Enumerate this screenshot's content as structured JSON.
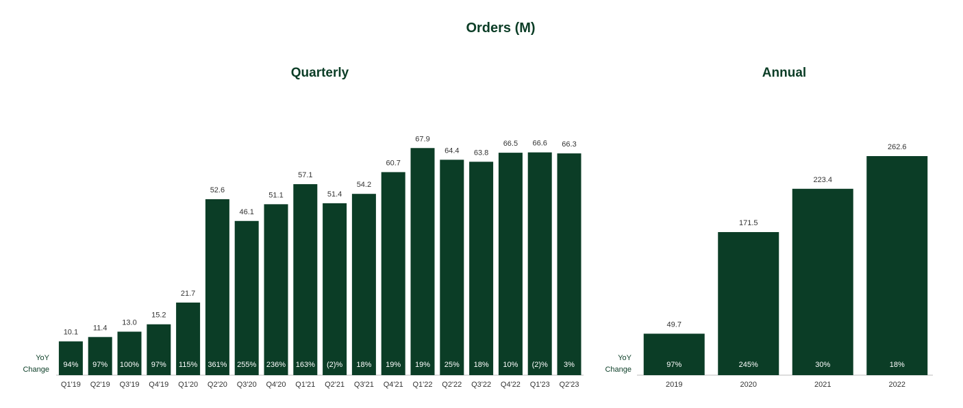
{
  "title": "Orders (M)",
  "side_label_line1": "YoY",
  "side_label_line2": "Change",
  "bar_color": "#0b3d26",
  "chart_data": [
    {
      "type": "bar",
      "title": "Quarterly",
      "categories": [
        "Q1'19",
        "Q2'19",
        "Q3'19",
        "Q4'19",
        "Q1'20",
        "Q2'20",
        "Q3'20",
        "Q4'20",
        "Q1'21",
        "Q2'21",
        "Q3'21",
        "Q4'21",
        "Q1'22",
        "Q2'22",
        "Q3'22",
        "Q4'22",
        "Q1'23",
        "Q2'23"
      ],
      "values": [
        10.1,
        11.4,
        13.0,
        15.2,
        21.7,
        52.6,
        46.1,
        51.1,
        57.1,
        51.4,
        54.2,
        60.7,
        67.9,
        64.4,
        63.8,
        66.5,
        66.6,
        66.3
      ],
      "value_labels": [
        "10.1",
        "11.4",
        "13.0",
        "15.2",
        "21.7",
        "52.6",
        "46.1",
        "51.1",
        "57.1",
        "51.4",
        "54.2",
        "60.7",
        "67.9",
        "64.4",
        "63.8",
        "66.5",
        "66.6",
        "66.3"
      ],
      "yoy_change": [
        "94%",
        "97%",
        "100%",
        "97%",
        "115%",
        "361%",
        "255%",
        "236%",
        "163%",
        "(2)%",
        "18%",
        "19%",
        "19%",
        "25%",
        "18%",
        "10%",
        "(2)%",
        "3%"
      ],
      "ylim": [
        0,
        70
      ],
      "grid": false,
      "legend": "none"
    },
    {
      "type": "bar",
      "title": "Annual",
      "categories": [
        "2019",
        "2020",
        "2021",
        "2022"
      ],
      "values": [
        49.7,
        171.5,
        223.4,
        262.6
      ],
      "value_labels": [
        "49.7",
        "171.5",
        "223.4",
        "262.6"
      ],
      "yoy_change": [
        "97%",
        "245%",
        "30%",
        "18%"
      ],
      "ylim": [
        0,
        270
      ],
      "grid": false,
      "legend": "none"
    }
  ]
}
